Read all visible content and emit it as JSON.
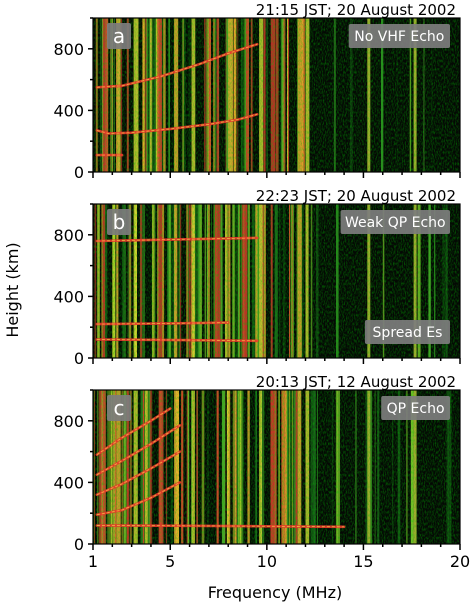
{
  "figure": {
    "ylabel": "Height (km)",
    "xlabel": "Frequency (MHz)"
  },
  "chart_data": [
    {
      "type": "heatmap",
      "panel_letter": "a",
      "timestamp": "21:15 JST; 20 August 2002",
      "annotations": [
        "No VHF Echo"
      ],
      "xlabel": "Frequency (MHz)",
      "ylabel": "Height (km)",
      "xlim": [
        1,
        20
      ],
      "ylim": [
        0,
        1000
      ],
      "x_ticks": [
        1,
        5,
        10,
        15,
        20
      ],
      "y_ticks": [
        0,
        400,
        800
      ],
      "ionogram_traces": [
        {
          "trace": "lower F-layer echo",
          "points": [
            [
              1.2,
              270
            ],
            [
              1.8,
              250
            ],
            [
              3,
              255
            ],
            [
              5,
              280
            ],
            [
              7,
              310
            ],
            [
              8.5,
              340
            ],
            [
              9.5,
              375
            ]
          ]
        },
        {
          "trace": "upper echo",
          "points": [
            [
              1.2,
              550
            ],
            [
              2.5,
              560
            ],
            [
              4.5,
              620
            ],
            [
              6.5,
              700
            ],
            [
              8,
              770
            ],
            [
              9.5,
              830
            ]
          ]
        },
        {
          "trace": "low-height echo",
          "points": [
            [
              1.2,
              110
            ],
            [
              2.5,
              110
            ]
          ]
        }
      ]
    },
    {
      "type": "heatmap",
      "panel_letter": "b",
      "timestamp": "22:23 JST; 20 August 2002",
      "annotations": [
        "Weak QP Echo",
        "Spread Es"
      ],
      "xlabel": "Frequency (MHz)",
      "ylabel": "Height (km)",
      "xlim": [
        1,
        20
      ],
      "ylim": [
        0,
        1000
      ],
      "x_ticks": [
        1,
        5,
        10,
        15,
        20
      ],
      "y_ticks": [
        0,
        400,
        800
      ],
      "ionogram_traces": [
        {
          "trace": "Es layer",
          "points": [
            [
              1.2,
              120
            ],
            [
              4,
              118
            ],
            [
              7,
              115
            ],
            [
              9.5,
              112
            ]
          ]
        },
        {
          "trace": "spread echo",
          "points": [
            [
              1.2,
              220
            ],
            [
              5,
              225
            ],
            [
              8,
              230
            ]
          ]
        },
        {
          "trace": "weak echo",
          "points": [
            [
              1.2,
              760
            ],
            [
              9.5,
              780
            ]
          ]
        }
      ]
    },
    {
      "type": "heatmap",
      "panel_letter": "c",
      "timestamp": "20:13 JST; 12 August 2002",
      "annotations": [
        "QP Echo"
      ],
      "xlabel": "Frequency (MHz)",
      "ylabel": "Height (km)",
      "xlim": [
        1,
        20
      ],
      "ylim": [
        0,
        1000
      ],
      "x_ticks": [
        1,
        5,
        10,
        15,
        20
      ],
      "y_ticks": [
        0,
        400,
        800
      ],
      "ionogram_traces": [
        {
          "trace": "Es layer",
          "points": [
            [
              1.2,
              120
            ],
            [
              6,
              118
            ],
            [
              10,
              115
            ],
            [
              14,
              112
            ]
          ]
        },
        {
          "trace": "QP echo 1",
          "points": [
            [
              1.2,
              190
            ],
            [
              2.5,
              220
            ],
            [
              4,
              300
            ],
            [
              5.5,
              400
            ]
          ]
        },
        {
          "trace": "QP echo 2",
          "points": [
            [
              1.2,
              320
            ],
            [
              2.5,
              390
            ],
            [
              4,
              490
            ],
            [
              5.5,
              600
            ]
          ]
        },
        {
          "trace": "QP echo 3",
          "points": [
            [
              1.2,
              450
            ],
            [
              2.5,
              540
            ],
            [
              4,
              650
            ],
            [
              5.5,
              770
            ]
          ]
        },
        {
          "trace": "QP echo 4",
          "points": [
            [
              1.2,
              580
            ],
            [
              2.5,
              690
            ],
            [
              4,
              800
            ],
            [
              5,
              880
            ]
          ]
        }
      ]
    }
  ]
}
